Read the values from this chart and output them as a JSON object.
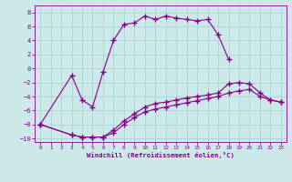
{
  "xlabel": "Windchill (Refroidissement éolien,°C)",
  "bg_color": "#cce8e8",
  "line_color": "#880088",
  "grid_color": "#aad4d4",
  "line1_x": [
    0,
    3,
    4,
    5,
    6,
    7,
    8,
    9,
    10,
    11,
    12,
    13,
    14,
    15,
    16,
    17,
    18
  ],
  "line1_y": [
    -8.0,
    -1.0,
    -4.5,
    -5.5,
    -0.5,
    4.0,
    6.3,
    6.5,
    7.5,
    7.0,
    7.5,
    7.2,
    7.0,
    6.8,
    7.0,
    4.8,
    1.3
  ],
  "line2_x": [
    0,
    3,
    4,
    5,
    6,
    7,
    8,
    9,
    10,
    11,
    12,
    13,
    14,
    15,
    16,
    17,
    18,
    19,
    20,
    21,
    22,
    23
  ],
  "line2_y": [
    -8.0,
    -9.5,
    -9.8,
    -9.8,
    -9.8,
    -8.8,
    -7.5,
    -6.5,
    -5.5,
    -5.0,
    -4.8,
    -4.5,
    -4.2,
    -4.0,
    -3.8,
    -3.5,
    -2.2,
    -2.0,
    -2.2,
    -3.5,
    -4.5,
    -4.8
  ],
  "line3_x": [
    0,
    3,
    4,
    5,
    6,
    7,
    8,
    9,
    10,
    11,
    12,
    13,
    14,
    15,
    16,
    17,
    18,
    19,
    20,
    21,
    22,
    23
  ],
  "line3_y": [
    -8.0,
    -9.5,
    -9.8,
    -9.8,
    -9.8,
    -9.2,
    -8.0,
    -7.0,
    -6.2,
    -5.8,
    -5.5,
    -5.2,
    -4.9,
    -4.6,
    -4.3,
    -4.0,
    -3.5,
    -3.2,
    -3.0,
    -4.0,
    -4.5,
    -4.8
  ],
  "ylim": [
    -10.5,
    9.0
  ],
  "xlim": [
    -0.5,
    23.5
  ],
  "yticks": [
    -10,
    -8,
    -6,
    -4,
    -2,
    0,
    2,
    4,
    6,
    8
  ],
  "xticks": [
    0,
    1,
    2,
    3,
    4,
    5,
    6,
    7,
    8,
    9,
    10,
    11,
    12,
    13,
    14,
    15,
    16,
    17,
    18,
    19,
    20,
    21,
    22,
    23
  ]
}
